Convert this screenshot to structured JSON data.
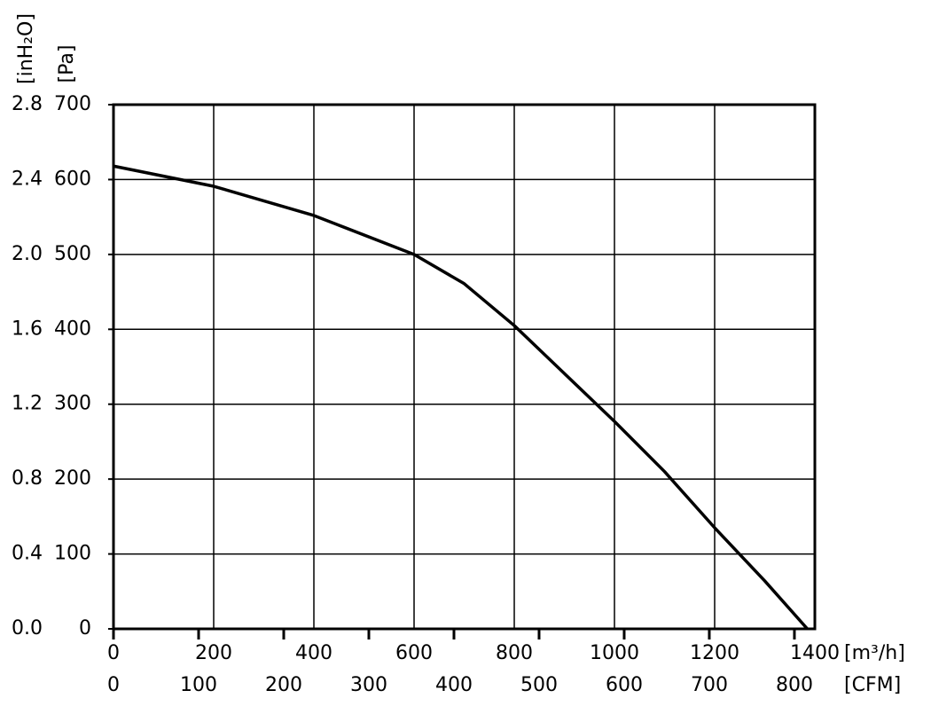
{
  "chart_data": {
    "type": "line",
    "x_label": "[m³/h]",
    "x2_label": "[CFM]",
    "y_label": "[Pa]",
    "y2_label": "[inH₂O]",
    "x": [
      0,
      200,
      400,
      600,
      700,
      800,
      1000,
      1100,
      1200,
      1300,
      1385
    ],
    "series": [
      {
        "color": "#000000",
        "values": [
          618,
          591,
          552,
          500,
          461,
          405,
          277,
          210,
          135,
          64,
          0
        ]
      }
    ],
    "xlim": [
      0,
      1400
    ],
    "xticks": [
      0,
      200,
      400,
      600,
      800,
      1000,
      1200,
      1400
    ],
    "x2lim": [
      0,
      824
    ],
    "x2ticks": [
      0,
      100,
      200,
      300,
      400,
      500,
      600,
      700,
      800
    ],
    "ylim": [
      0,
      700
    ],
    "yticks": [
      0,
      100,
      200,
      300,
      400,
      500,
      600,
      700
    ],
    "y2lim": [
      0,
      2.8
    ],
    "y2ticks": [
      {
        "value": 0,
        "label": "0.0"
      },
      0.4,
      0.8,
      1.2,
      1.6,
      {
        "value": 2,
        "label": "2.0"
      },
      2.4,
      2.8
    ],
    "grid": true
  }
}
